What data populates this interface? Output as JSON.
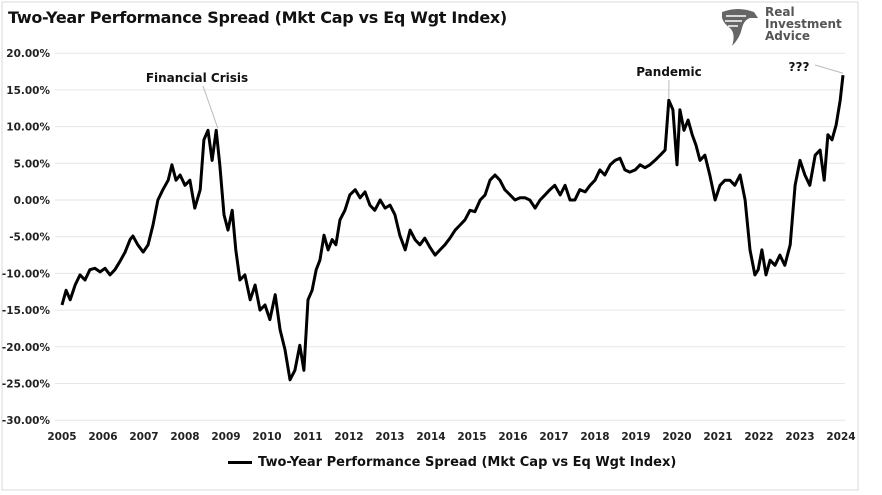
{
  "chart_data": {
    "type": "line",
    "title": "Two-Year Performance Spread (Mkt Cap vs Eq Wgt Index)",
    "xlabel": "",
    "ylabel": "",
    "xlim": [
      2005,
      2024.3
    ],
    "ylim": [
      -30,
      20
    ],
    "grid": true,
    "legend_placement": "bottom",
    "x_ticks": [
      "2005",
      "2006",
      "2007",
      "2008",
      "2009",
      "2010",
      "2011",
      "2012",
      "2013",
      "2014",
      "2015",
      "2016",
      "2017",
      "2018",
      "2019",
      "2020",
      "2021",
      "2022",
      "2023",
      "2024"
    ],
    "y_ticks": [
      "20.00%",
      "15.00%",
      "10.00%",
      "5.00%",
      "0.00%",
      "-5.00%",
      "-10.00%",
      "-15.00%",
      "-20.00%",
      "-25.00%",
      "-30.00%"
    ],
    "y_tick_values": [
      20,
      15,
      10,
      5,
      0,
      -5,
      -10,
      -15,
      -20,
      -25,
      -30
    ],
    "series": [
      {
        "name": "Two-Year Performance Spread (Mkt Cap vs Eq Wgt Index)",
        "color": "#000000",
        "x": [
          2005.0,
          2005.1,
          2005.2,
          2005.32,
          2005.44,
          2005.56,
          2005.68,
          2005.8,
          2005.93,
          2006.05,
          2006.17,
          2006.29,
          2006.41,
          2006.54,
          2006.66,
          2006.73,
          2006.85,
          2006.98,
          2007.1,
          2007.22,
          2007.34,
          2007.46,
          2007.59,
          2007.68,
          2007.78,
          2007.88,
          2008.0,
          2008.12,
          2008.24,
          2008.37,
          2008.46,
          2008.56,
          2008.66,
          2008.76,
          2008.85,
          2008.95,
          2009.05,
          2009.15,
          2009.24,
          2009.34,
          2009.46,
          2009.59,
          2009.71,
          2009.83,
          2009.95,
          2010.07,
          2010.2,
          2010.32,
          2010.44,
          2010.56,
          2010.68,
          2010.8,
          2010.9,
          2011.0,
          2011.1,
          2011.2,
          2011.29,
          2011.39,
          2011.49,
          2011.59,
          2011.68,
          2011.78,
          2011.9,
          2012.02,
          2012.15,
          2012.27,
          2012.39,
          2012.51,
          2012.63,
          2012.76,
          2012.88,
          2013.0,
          2013.12,
          2013.24,
          2013.37,
          2013.49,
          2013.61,
          2013.73,
          2013.85,
          2013.98,
          2014.1,
          2014.22,
          2014.34,
          2014.46,
          2014.59,
          2014.71,
          2014.83,
          2014.95,
          2015.07,
          2015.2,
          2015.32,
          2015.44,
          2015.56,
          2015.68,
          2015.8,
          2015.93,
          2016.05,
          2016.17,
          2016.29,
          2016.41,
          2016.54,
          2016.66,
          2016.78,
          2016.9,
          2017.02,
          2017.15,
          2017.27,
          2017.39,
          2017.51,
          2017.63,
          2017.76,
          2017.88,
          2018.0,
          2018.12,
          2018.24,
          2018.37,
          2018.49,
          2018.61,
          2018.73,
          2018.85,
          2018.98,
          2019.1,
          2019.22,
          2019.34,
          2019.46,
          2019.59,
          2019.71,
          2019.8,
          2019.9,
          2020.0,
          2020.07,
          2020.17,
          2020.27,
          2020.37,
          2020.46,
          2020.56,
          2020.68,
          2020.8,
          2020.93,
          2021.05,
          2021.17,
          2021.29,
          2021.41,
          2021.54,
          2021.66,
          2021.78,
          2021.9,
          2021.98,
          2022.07,
          2022.17,
          2022.27,
          2022.39,
          2022.51,
          2022.63,
          2022.76,
          2022.88,
          2023.0,
          2023.12,
          2023.24,
          2023.37,
          2023.49,
          2023.59,
          2023.68,
          2023.78,
          2023.88,
          2023.98,
          2024.05
        ],
        "values": [
          -14.3,
          -12.3,
          -13.6,
          -11.6,
          -10.2,
          -10.9,
          -9.5,
          -9.3,
          -9.8,
          -9.3,
          -10.2,
          -9.5,
          -8.4,
          -7.1,
          -5.4,
          -4.9,
          -6.1,
          -7.1,
          -6.1,
          -3.4,
          0,
          1.4,
          2.7,
          4.8,
          2.7,
          3.4,
          2.0,
          2.7,
          -1.1,
          1.4,
          8.2,
          9.5,
          5.4,
          9.5,
          4.8,
          -2.0,
          -4.1,
          -1.4,
          -6.8,
          -10.9,
          -10.2,
          -13.6,
          -11.6,
          -15.0,
          -14.3,
          -16.3,
          -12.9,
          -17.7,
          -20.4,
          -24.5,
          -23.2,
          -19.8,
          -23.2,
          -13.6,
          -12.3,
          -9.5,
          -8.2,
          -4.8,
          -6.8,
          -5.4,
          -6.1,
          -2.7,
          -1.4,
          0.7,
          1.4,
          0.3,
          1.1,
          -0.7,
          -1.4,
          0,
          -1.1,
          -0.7,
          -2.0,
          -4.8,
          -6.8,
          -4.1,
          -5.4,
          -6.1,
          -5.2,
          -6.5,
          -7.5,
          -6.8,
          -6.1,
          -5.2,
          -4.1,
          -3.4,
          -2.7,
          -1.4,
          -1.6,
          0,
          0.7,
          2.7,
          3.4,
          2.7,
          1.4,
          0.7,
          0,
          0.3,
          0.3,
          0,
          -1.1,
          0,
          0.7,
          1.4,
          2.0,
          0.7,
          2.0,
          0,
          0,
          1.4,
          1.1,
          2.0,
          2.7,
          4.1,
          3.4,
          4.8,
          5.4,
          5.7,
          4.1,
          3.8,
          4.1,
          4.8,
          4.4,
          4.8,
          5.4,
          6.1,
          6.8,
          13.6,
          12.3,
          4.8,
          12.3,
          9.5,
          10.9,
          8.9,
          7.5,
          5.4,
          6.1,
          3.4,
          0,
          2.0,
          2.7,
          2.7,
          2.0,
          3.4,
          0,
          -6.8,
          -10.2,
          -9.5,
          -6.8,
          -10.2,
          -8.2,
          -8.9,
          -7.5,
          -8.9,
          -6.1,
          2.0,
          5.4,
          3.4,
          2.0,
          6.1,
          6.8,
          2.7,
          8.9,
          8.2,
          10.2,
          13.6,
          17.0
        ]
      }
    ],
    "annotations": [
      {
        "text": "Financial Crisis",
        "x": 2008.8,
        "y": 9.5
      },
      {
        "text": "Pandemic",
        "x": 2019.8,
        "y": 13.6
      },
      {
        "text": "???",
        "x": 2024.05,
        "y": 17.0
      }
    ]
  },
  "logo": {
    "line1": "Real",
    "line2": "Investment",
    "line3": "Advice"
  }
}
